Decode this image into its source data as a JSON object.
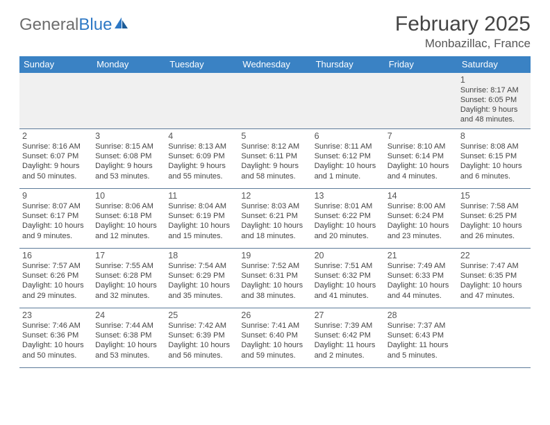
{
  "brand": {
    "part1": "General",
    "part2": "Blue"
  },
  "title": "February 2025",
  "location": "Monbazillac, France",
  "colors": {
    "header_bg": "#3a82c4",
    "header_text": "#ffffff",
    "week1_bg": "#f0f0f0",
    "row_border": "#5c7a99",
    "logo_gray": "#6d6d6d",
    "logo_blue": "#2d78c5",
    "text": "#444444"
  },
  "columns": [
    "Sunday",
    "Monday",
    "Tuesday",
    "Wednesday",
    "Thursday",
    "Friday",
    "Saturday"
  ],
  "weeks": [
    [
      null,
      null,
      null,
      null,
      null,
      null,
      {
        "n": "1",
        "sr": "8:17 AM",
        "ss": "6:05 PM",
        "dl": "9 hours and 48 minutes."
      }
    ],
    [
      {
        "n": "2",
        "sr": "8:16 AM",
        "ss": "6:07 PM",
        "dl": "9 hours and 50 minutes."
      },
      {
        "n": "3",
        "sr": "8:15 AM",
        "ss": "6:08 PM",
        "dl": "9 hours and 53 minutes."
      },
      {
        "n": "4",
        "sr": "8:13 AM",
        "ss": "6:09 PM",
        "dl": "9 hours and 55 minutes."
      },
      {
        "n": "5",
        "sr": "8:12 AM",
        "ss": "6:11 PM",
        "dl": "9 hours and 58 minutes."
      },
      {
        "n": "6",
        "sr": "8:11 AM",
        "ss": "6:12 PM",
        "dl": "10 hours and 1 minute."
      },
      {
        "n": "7",
        "sr": "8:10 AM",
        "ss": "6:14 PM",
        "dl": "10 hours and 4 minutes."
      },
      {
        "n": "8",
        "sr": "8:08 AM",
        "ss": "6:15 PM",
        "dl": "10 hours and 6 minutes."
      }
    ],
    [
      {
        "n": "9",
        "sr": "8:07 AM",
        "ss": "6:17 PM",
        "dl": "10 hours and 9 minutes."
      },
      {
        "n": "10",
        "sr": "8:06 AM",
        "ss": "6:18 PM",
        "dl": "10 hours and 12 minutes."
      },
      {
        "n": "11",
        "sr": "8:04 AM",
        "ss": "6:19 PM",
        "dl": "10 hours and 15 minutes."
      },
      {
        "n": "12",
        "sr": "8:03 AM",
        "ss": "6:21 PM",
        "dl": "10 hours and 18 minutes."
      },
      {
        "n": "13",
        "sr": "8:01 AM",
        "ss": "6:22 PM",
        "dl": "10 hours and 20 minutes."
      },
      {
        "n": "14",
        "sr": "8:00 AM",
        "ss": "6:24 PM",
        "dl": "10 hours and 23 minutes."
      },
      {
        "n": "15",
        "sr": "7:58 AM",
        "ss": "6:25 PM",
        "dl": "10 hours and 26 minutes."
      }
    ],
    [
      {
        "n": "16",
        "sr": "7:57 AM",
        "ss": "6:26 PM",
        "dl": "10 hours and 29 minutes."
      },
      {
        "n": "17",
        "sr": "7:55 AM",
        "ss": "6:28 PM",
        "dl": "10 hours and 32 minutes."
      },
      {
        "n": "18",
        "sr": "7:54 AM",
        "ss": "6:29 PM",
        "dl": "10 hours and 35 minutes."
      },
      {
        "n": "19",
        "sr": "7:52 AM",
        "ss": "6:31 PM",
        "dl": "10 hours and 38 minutes."
      },
      {
        "n": "20",
        "sr": "7:51 AM",
        "ss": "6:32 PM",
        "dl": "10 hours and 41 minutes."
      },
      {
        "n": "21",
        "sr": "7:49 AM",
        "ss": "6:33 PM",
        "dl": "10 hours and 44 minutes."
      },
      {
        "n": "22",
        "sr": "7:47 AM",
        "ss": "6:35 PM",
        "dl": "10 hours and 47 minutes."
      }
    ],
    [
      {
        "n": "23",
        "sr": "7:46 AM",
        "ss": "6:36 PM",
        "dl": "10 hours and 50 minutes."
      },
      {
        "n": "24",
        "sr": "7:44 AM",
        "ss": "6:38 PM",
        "dl": "10 hours and 53 minutes."
      },
      {
        "n": "25",
        "sr": "7:42 AM",
        "ss": "6:39 PM",
        "dl": "10 hours and 56 minutes."
      },
      {
        "n": "26",
        "sr": "7:41 AM",
        "ss": "6:40 PM",
        "dl": "10 hours and 59 minutes."
      },
      {
        "n": "27",
        "sr": "7:39 AM",
        "ss": "6:42 PM",
        "dl": "11 hours and 2 minutes."
      },
      {
        "n": "28",
        "sr": "7:37 AM",
        "ss": "6:43 PM",
        "dl": "11 hours and 5 minutes."
      },
      null
    ]
  ],
  "labels": {
    "sunrise": "Sunrise: ",
    "sunset": "Sunset: ",
    "daylight": "Daylight: "
  }
}
